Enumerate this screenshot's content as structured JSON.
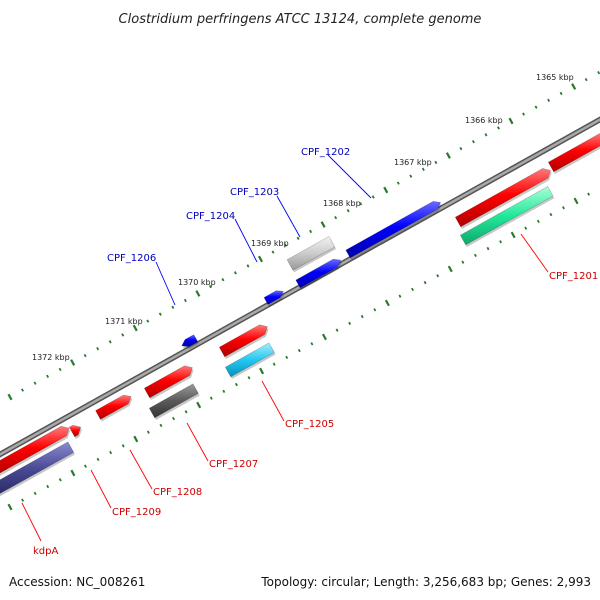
{
  "title": "Clostridium perfringens ATCC 13124, complete genome",
  "footer": {
    "accession": "Accession: NC_008261",
    "summary": "Topology: circular; Length: 3,256,683 bp; Genes: 2,993"
  },
  "colors": {
    "forward": "#ff0000",
    "reverse": "#0000ff",
    "backbone": "#888888",
    "tick": "#2a7a2a",
    "label_forward": "#cc0000",
    "label_reverse": "#0000bb"
  },
  "ticks": [
    {
      "label": "1365 kbp"
    },
    {
      "label": "1366 kbp"
    },
    {
      "label": "1367 kbp"
    },
    {
      "label": "1368 kbp"
    },
    {
      "label": "1369 kbp"
    },
    {
      "label": "1370 kbp"
    },
    {
      "label": "1371 kbp"
    },
    {
      "label": "1372 kbp"
    }
  ],
  "genes": [
    {
      "name": "CPF_1201",
      "strand": "forward"
    },
    {
      "name": "CPF_1202",
      "strand": "reverse"
    },
    {
      "name": "CPF_1203",
      "strand": "reverse"
    },
    {
      "name": "CPF_1204",
      "strand": "reverse"
    },
    {
      "name": "CPF_1205",
      "strand": "forward"
    },
    {
      "name": "CPF_1206",
      "strand": "reverse"
    },
    {
      "name": "CPF_1207",
      "strand": "forward"
    },
    {
      "name": "CPF_1208",
      "strand": "forward"
    },
    {
      "name": "CPF_1209",
      "strand": "forward"
    },
    {
      "name": "kdpA",
      "strand": "forward"
    }
  ]
}
